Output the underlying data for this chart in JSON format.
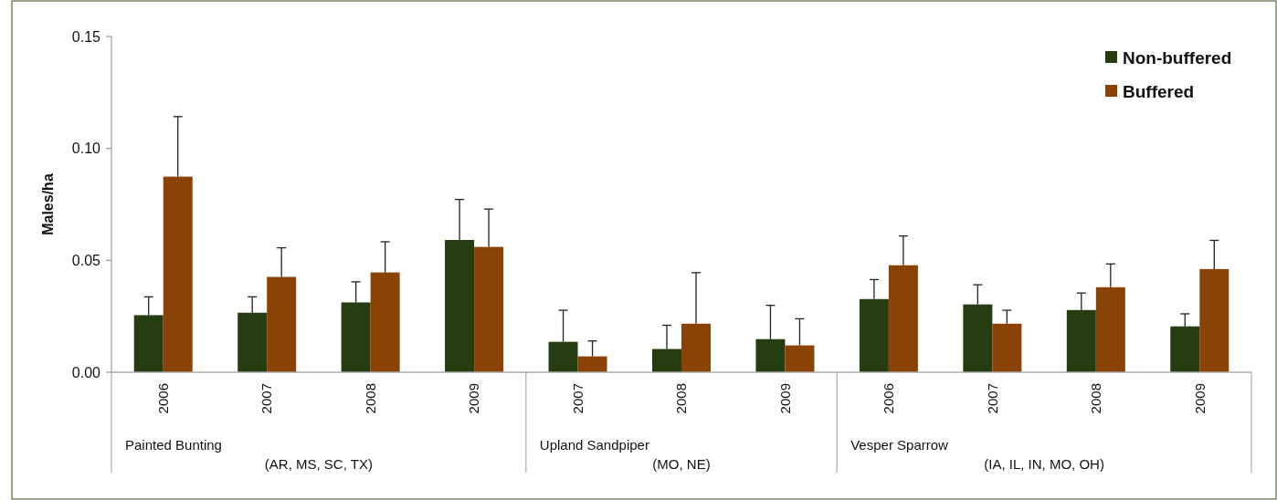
{
  "chart_data": {
    "type": "bar",
    "ylabel": "Males/ha",
    "categories": [
      "2006",
      "2007",
      "2008",
      "2009",
      "2007",
      "2008",
      "2009",
      "2006",
      "2007",
      "2008",
      "2009"
    ],
    "series": [
      {
        "name": "Non-buffered",
        "color": "#263d11",
        "values": [
          0.0255,
          0.0266,
          0.0312,
          0.0591,
          0.0136,
          0.0104,
          0.0148,
          0.0327,
          0.0303,
          0.0278,
          0.0205
        ],
        "errors": [
          [
            0.0255,
            0.0337
          ],
          [
            0.0266,
            0.0337
          ],
          [
            0.0312,
            0.0404
          ],
          [
            0.0591,
            0.0772
          ],
          [
            0.0136,
            0.0277
          ],
          [
            0.0104,
            0.021
          ],
          [
            0.0148,
            0.0299
          ],
          [
            0.0327,
            0.0414
          ],
          [
            0.0303,
            0.0391
          ],
          [
            0.0278,
            0.0354
          ],
          [
            0.0205,
            0.0261
          ]
        ]
      },
      {
        "name": "Buffered",
        "color": "#8b4305",
        "values": [
          0.0874,
          0.0426,
          0.0446,
          0.056,
          0.0071,
          0.0217,
          0.012,
          0.0478,
          0.0217,
          0.038,
          0.0461
        ],
        "errors": [
          [
            0.0874,
            0.1142
          ],
          [
            0.0426,
            0.0556
          ],
          [
            0.0446,
            0.0583
          ],
          [
            0.056,
            0.0729
          ],
          [
            0.0071,
            0.014
          ],
          [
            0.0217,
            0.0445
          ],
          [
            0.012,
            0.0239
          ],
          [
            0.0478,
            0.0609
          ],
          [
            0.0217,
            0.0277
          ],
          [
            0.038,
            0.0484
          ],
          [
            0.0461,
            0.0589
          ]
        ]
      }
    ],
    "ylim": [
      0,
      0.15
    ],
    "yticks": [
      {
        "value": 0,
        "label": "0.00"
      },
      {
        "value": 0.05,
        "label": "0.05"
      },
      {
        "value": 0.1,
        "label": "0.10"
      },
      {
        "value": 0.15,
        "label": "0.15"
      }
    ],
    "legend": "top right",
    "annotations": [
      "Painted Bunting",
      "(AR, MS, SC, TX)",
      "Upland Sandpiper",
      "(MO, NE)",
      "Vesper Sparrow",
      "(IA, IL, IN, MO, OH)"
    ]
  }
}
